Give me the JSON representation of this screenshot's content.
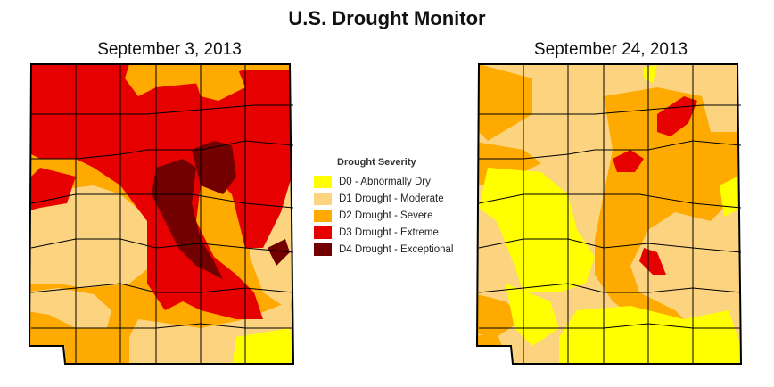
{
  "title": "U.S. Drought Monitor",
  "maps": [
    {
      "date": "September 3, 2013"
    },
    {
      "date": "September 24, 2013"
    }
  ],
  "legend": {
    "title": "Drought Severity",
    "items": [
      {
        "label": "D0 - Abnormally Dry",
        "color": "#ffff00"
      },
      {
        "label": "D1 Drought - Moderate",
        "color": "#fcd37f"
      },
      {
        "label": "D2 Drought - Severe",
        "color": "#ffaa00"
      },
      {
        "label": "D3 Drought - Extreme",
        "color": "#e60000"
      },
      {
        "label": "D4 Drought - Exceptional",
        "color": "#730000"
      }
    ]
  }
}
